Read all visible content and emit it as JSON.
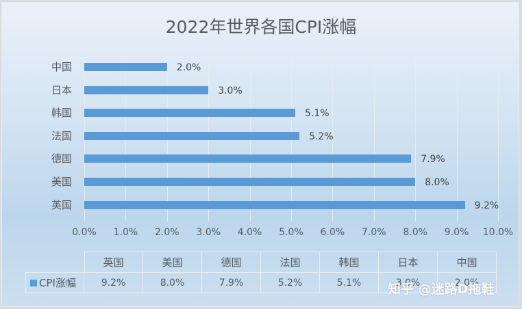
{
  "chart_data": {
    "type": "bar",
    "orientation": "horizontal",
    "title": "2022年世界各国CPI涨幅",
    "categories": [
      "英国",
      "美国",
      "德国",
      "法国",
      "韩国",
      "日本",
      "中国"
    ],
    "series": [
      {
        "name": "CPI涨幅",
        "values": [
          9.2,
          8.0,
          7.9,
          5.2,
          5.1,
          3.0,
          2.0
        ],
        "color": "#5b9bd5"
      }
    ],
    "value_labels": [
      "9.2%",
      "8.0%",
      "7.9%",
      "5.2%",
      "5.1%",
      "3.0%",
      "2.0%"
    ],
    "xlabel": "",
    "ylabel": "",
    "xlim": [
      0,
      10
    ],
    "x_ticks": [
      "0.0%",
      "1.0%",
      "2.0%",
      "3.0%",
      "4.0%",
      "5.0%",
      "6.0%",
      "7.0%",
      "8.0%",
      "9.0%",
      "10.0%"
    ],
    "grid": true,
    "legend_position": "data-table",
    "data_table": {
      "headers": [
        "英国",
        "美国",
        "德国",
        "法国",
        "韩国",
        "日本",
        "中国"
      ],
      "rows": [
        {
          "legend": "CPI涨幅",
          "values": [
            "9.2%",
            "8.0%",
            "7.9%",
            "5.2%",
            "5.1%",
            "3.0%",
            "2.0%"
          ]
        }
      ]
    }
  },
  "rows_display": [
    {
      "label": "中国",
      "value": "2.0%"
    },
    {
      "label": "日本",
      "value": "3.0%"
    },
    {
      "label": "韩国",
      "value": "5.1%"
    },
    {
      "label": "法国",
      "value": "5.2%"
    },
    {
      "label": "德国",
      "value": "7.9%"
    },
    {
      "label": "美国",
      "value": "8.0%"
    },
    {
      "label": "英国",
      "value": "9.2%"
    }
  ],
  "watermark": "知乎 @迷路D拖鞋"
}
